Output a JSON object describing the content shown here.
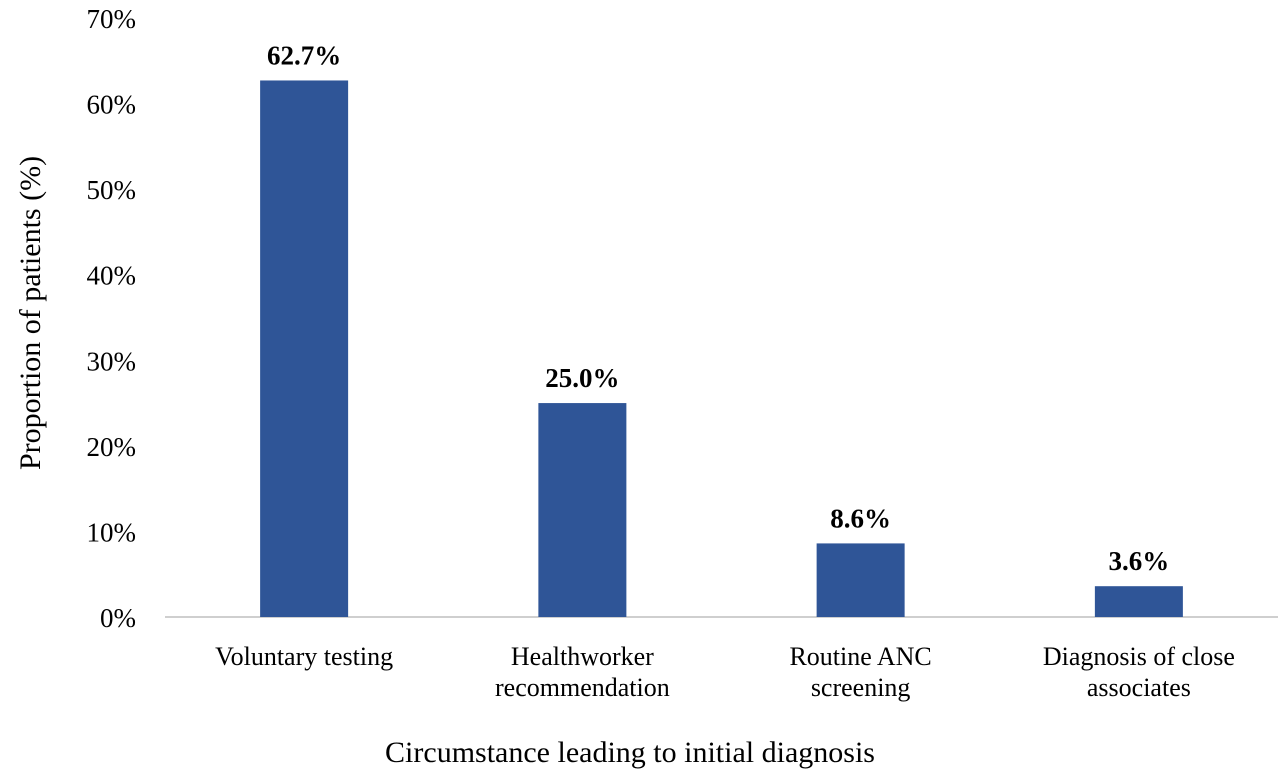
{
  "chart_data": {
    "type": "bar",
    "categories": [
      [
        "Voluntary testing"
      ],
      [
        "Healthworker",
        "recommendation"
      ],
      [
        "Routine ANC",
        "screening"
      ],
      [
        "Diagnosis of close",
        "associates"
      ]
    ],
    "values": [
      62.7,
      25.0,
      8.6,
      3.6
    ],
    "data_labels": [
      "62.7%",
      "25.0%",
      "8.6%",
      "3.6%"
    ],
    "xlabel": "Circumstance leading to initial diagnosis",
    "ylabel": "Proportion of patients  (%)",
    "ylim": [
      0,
      70
    ],
    "yticks": [
      0,
      10,
      20,
      30,
      40,
      50,
      60,
      70
    ],
    "ytick_labels": [
      "0%",
      "10%",
      "20%",
      "30%",
      "40%",
      "50%",
      "60%",
      "70%"
    ],
    "grid": false,
    "legend": "none",
    "bar_color": "#2f5597",
    "axis_color": "#bfbfbf"
  }
}
